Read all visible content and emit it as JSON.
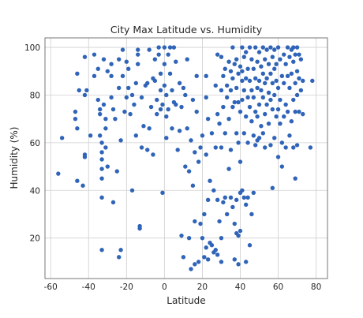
{
  "chart_data": {
    "type": "scatter",
    "title": "City Max Latitude vs. Humidity",
    "xlabel": "Latitude",
    "ylabel": "Humidity (%)",
    "xlim": [
      -63,
      86
    ],
    "ylim": [
      3,
      104
    ],
    "xticks": [
      -60,
      -40,
      -20,
      0,
      20,
      40,
      60,
      80
    ],
    "yticks": [
      20,
      40,
      60,
      80,
      100
    ],
    "grid": true,
    "point_color": "#2f64b8",
    "points": [
      [
        -56,
        47
      ],
      [
        -54,
        62
      ],
      [
        -47,
        73
      ],
      [
        -47,
        70
      ],
      [
        -46,
        89
      ],
      [
        -46,
        66
      ],
      [
        -45,
        82
      ],
      [
        -46,
        44
      ],
      [
        -43,
        42
      ],
      [
        -42,
        80
      ],
      [
        -42,
        96
      ],
      [
        -41,
        82
      ],
      [
        -42,
        55
      ],
      [
        -42,
        54
      ],
      [
        -39,
        63
      ],
      [
        -37,
        97
      ],
      [
        -37,
        88
      ],
      [
        -35,
        91
      ],
      [
        -35,
        78
      ],
      [
        -34,
        74
      ],
      [
        -34,
        72
      ],
      [
        -34,
        63
      ],
      [
        -33,
        60
      ],
      [
        -33,
        56
      ],
      [
        -33,
        53
      ],
      [
        -33,
        49
      ],
      [
        -33,
        45
      ],
      [
        -33,
        37
      ],
      [
        -33,
        15
      ],
      [
        -32,
        95
      ],
      [
        -32,
        76
      ],
      [
        -31,
        70
      ],
      [
        -31,
        66
      ],
      [
        -31,
        58
      ],
      [
        -30,
        50
      ],
      [
        -30,
        90
      ],
      [
        -28,
        88
      ],
      [
        -28,
        93
      ],
      [
        -28,
        79
      ],
      [
        -27,
        74
      ],
      [
        -27,
        35
      ],
      [
        -26,
        70
      ],
      [
        -25,
        48
      ],
      [
        -24,
        95
      ],
      [
        -24,
        83
      ],
      [
        -23,
        61
      ],
      [
        -23,
        15
      ],
      [
        -24,
        12
      ],
      [
        -22,
        99
      ],
      [
        -22,
        88
      ],
      [
        -21,
        73
      ],
      [
        -20,
        79
      ],
      [
        -20,
        94
      ],
      [
        -19,
        91
      ],
      [
        -19,
        83
      ],
      [
        -18,
        72
      ],
      [
        -17,
        80
      ],
      [
        -17,
        40
      ],
      [
        -16,
        76
      ],
      [
        -15,
        63
      ],
      [
        -15,
        85
      ],
      [
        -14,
        93
      ],
      [
        -14,
        99
      ],
      [
        -14,
        97
      ],
      [
        -13,
        25
      ],
      [
        -13,
        24
      ],
      [
        -12,
        79
      ],
      [
        -12,
        58
      ],
      [
        -11,
        67
      ],
      [
        -10,
        84
      ],
      [
        -9,
        57
      ],
      [
        -9,
        85
      ],
      [
        -8,
        66
      ],
      [
        -8,
        99
      ],
      [
        -7,
        75
      ],
      [
        -6,
        55
      ],
      [
        -6,
        87
      ],
      [
        -5,
        86
      ],
      [
        -5,
        95
      ],
      [
        -4,
        72
      ],
      [
        -4,
        78
      ],
      [
        -3,
        100
      ],
      [
        -3,
        97
      ],
      [
        -2,
        89
      ],
      [
        -2,
        82
      ],
      [
        -2,
        74
      ],
      [
        -1,
        76
      ],
      [
        -1,
        39
      ],
      [
        0,
        100
      ],
      [
        0,
        84
      ],
      [
        0,
        93
      ],
      [
        1,
        80
      ],
      [
        1,
        71
      ],
      [
        1,
        62
      ],
      [
        2,
        97
      ],
      [
        2,
        74
      ],
      [
        3,
        89
      ],
      [
        3,
        100
      ],
      [
        4,
        82
      ],
      [
        4,
        66
      ],
      [
        5,
        100
      ],
      [
        5,
        77
      ],
      [
        6,
        94
      ],
      [
        6,
        76
      ],
      [
        7,
        57
      ],
      [
        8,
        85
      ],
      [
        8,
        65
      ],
      [
        9,
        75
      ],
      [
        9,
        21
      ],
      [
        10,
        83
      ],
      [
        10,
        12
      ],
      [
        11,
        80
      ],
      [
        11,
        50
      ],
      [
        12,
        95
      ],
      [
        12,
        66
      ],
      [
        13,
        48
      ],
      [
        13,
        20
      ],
      [
        14,
        7
      ],
      [
        14,
        61
      ],
      [
        15,
        78
      ],
      [
        15,
        42
      ],
      [
        16,
        56
      ],
      [
        16,
        27
      ],
      [
        16,
        9
      ],
      [
        17,
        88
      ],
      [
        17,
        73
      ],
      [
        18,
        52
      ],
      [
        18,
        10
      ],
      [
        19,
        26
      ],
      [
        19,
        58
      ],
      [
        20,
        63
      ],
      [
        20,
        20
      ],
      [
        21,
        30
      ],
      [
        21,
        12
      ],
      [
        22,
        88
      ],
      [
        22,
        79
      ],
      [
        22,
        55
      ],
      [
        22,
        16
      ],
      [
        23,
        70
      ],
      [
        23,
        36
      ],
      [
        23,
        11
      ],
      [
        24,
        44
      ],
      [
        24,
        18
      ],
      [
        25,
        64
      ],
      [
        25,
        17
      ],
      [
        26,
        40
      ],
      [
        26,
        14
      ],
      [
        27,
        84
      ],
      [
        27,
        58
      ],
      [
        27,
        15
      ],
      [
        28,
        97
      ],
      [
        28,
        72
      ],
      [
        28,
        36
      ],
      [
        28,
        13
      ],
      [
        29,
        68
      ],
      [
        29,
        27
      ],
      [
        30,
        96
      ],
      [
        30,
        82
      ],
      [
        30,
        58
      ],
      [
        30,
        20
      ],
      [
        30,
        10
      ],
      [
        31,
        88
      ],
      [
        31,
        75
      ],
      [
        31,
        35
      ],
      [
        32,
        91
      ],
      [
        32,
        64
      ],
      [
        32,
        37
      ],
      [
        33,
        84
      ],
      [
        33,
        79
      ],
      [
        33,
        30
      ],
      [
        34,
        94
      ],
      [
        34,
        70
      ],
      [
        34,
        49
      ],
      [
        35,
        90
      ],
      [
        35,
        82
      ],
      [
        35,
        57
      ],
      [
        35,
        37
      ],
      [
        36,
        100
      ],
      [
        36,
        87
      ],
      [
        36,
        75
      ],
      [
        36,
        33
      ],
      [
        37,
        93
      ],
      [
        37,
        77
      ],
      [
        37,
        26
      ],
      [
        37,
        11
      ],
      [
        38,
        95
      ],
      [
        38,
        83
      ],
      [
        38,
        64
      ],
      [
        38,
        36
      ],
      [
        38,
        22
      ],
      [
        39,
        89
      ],
      [
        39,
        77
      ],
      [
        39,
        60
      ],
      [
        39,
        21
      ],
      [
        39,
        9
      ],
      [
        40,
        92
      ],
      [
        40,
        73
      ],
      [
        40,
        52
      ],
      [
        40,
        39
      ],
      [
        40,
        23
      ],
      [
        41,
        100
      ],
      [
        41,
        90
      ],
      [
        41,
        86
      ],
      [
        41,
        78
      ],
      [
        41,
        40
      ],
      [
        42,
        96
      ],
      [
        42,
        82
      ],
      [
        42,
        64
      ],
      [
        42,
        37
      ],
      [
        43,
        98
      ],
      [
        43,
        87
      ],
      [
        43,
        71
      ],
      [
        43,
        34
      ],
      [
        43,
        10
      ],
      [
        44,
        91
      ],
      [
        44,
        79
      ],
      [
        44,
        60
      ],
      [
        44,
        37
      ],
      [
        45,
        100
      ],
      [
        45,
        86
      ],
      [
        45,
        75
      ],
      [
        45,
        17
      ],
      [
        46,
        95
      ],
      [
        46,
        82
      ],
      [
        46,
        69
      ],
      [
        46,
        30
      ],
      [
        47,
        91
      ],
      [
        47,
        79
      ],
      [
        47,
        63
      ],
      [
        47,
        39
      ],
      [
        48,
        100
      ],
      [
        48,
        87
      ],
      [
        48,
        73
      ],
      [
        48,
        59
      ],
      [
        49,
        94
      ],
      [
        49,
        83
      ],
      [
        49,
        71
      ],
      [
        49,
        61
      ],
      [
        50,
        98
      ],
      [
        50,
        86
      ],
      [
        50,
        76
      ],
      [
        50,
        62
      ],
      [
        51,
        92
      ],
      [
        51,
        82
      ],
      [
        51,
        67
      ],
      [
        52,
        100
      ],
      [
        52,
        89
      ],
      [
        52,
        79
      ],
      [
        52,
        64
      ],
      [
        53,
        95
      ],
      [
        53,
        85
      ],
      [
        53,
        72
      ],
      [
        53,
        58
      ],
      [
        54,
        99
      ],
      [
        54,
        87
      ],
      [
        54,
        76
      ],
      [
        55,
        93
      ],
      [
        55,
        81
      ],
      [
        55,
        68
      ],
      [
        56,
        100
      ],
      [
        56,
        89
      ],
      [
        56,
        78
      ],
      [
        56,
        59
      ],
      [
        57,
        96
      ],
      [
        57,
        85
      ],
      [
        57,
        74
      ],
      [
        57,
        41
      ],
      [
        58,
        99
      ],
      [
        58,
        91
      ],
      [
        58,
        80
      ],
      [
        58,
        62
      ],
      [
        59,
        93
      ],
      [
        59,
        86
      ],
      [
        59,
        71
      ],
      [
        60,
        100
      ],
      [
        60,
        83
      ],
      [
        60,
        74
      ],
      [
        60,
        54
      ],
      [
        61,
        95
      ],
      [
        61,
        78
      ],
      [
        61,
        68
      ],
      [
        62,
        88
      ],
      [
        62,
        60
      ],
      [
        62,
        50
      ],
      [
        63,
        97
      ],
      [
        63,
        85
      ],
      [
        63,
        71
      ],
      [
        64,
        93
      ],
      [
        64,
        76
      ],
      [
        64,
        58
      ],
      [
        65,
        100
      ],
      [
        65,
        88
      ],
      [
        65,
        73
      ],
      [
        66,
        96
      ],
      [
        66,
        83
      ],
      [
        66,
        63
      ],
      [
        67,
        99
      ],
      [
        67,
        89
      ],
      [
        67,
        69
      ],
      [
        68,
        100
      ],
      [
        68,
        94
      ],
      [
        68,
        78
      ],
      [
        68,
        58
      ],
      [
        69,
        97
      ],
      [
        69,
        85
      ],
      [
        69,
        73
      ],
      [
        69,
        45
      ],
      [
        70,
        100
      ],
      [
        70,
        90
      ],
      [
        70,
        80
      ],
      [
        70,
        59
      ],
      [
        71,
        97
      ],
      [
        71,
        87
      ],
      [
        71,
        73
      ],
      [
        72,
        95
      ],
      [
        72,
        82
      ],
      [
        73,
        86
      ],
      [
        73,
        72
      ],
      [
        77,
        58
      ],
      [
        78,
        86
      ]
    ]
  }
}
